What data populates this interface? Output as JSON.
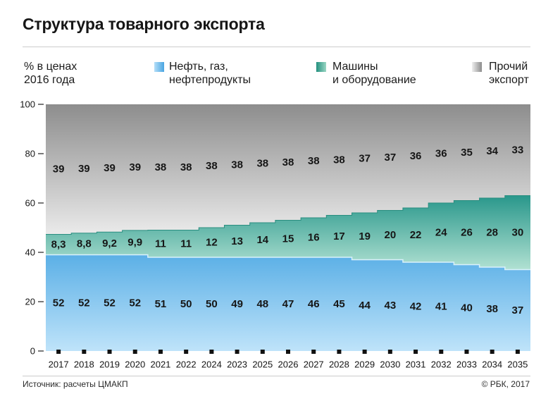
{
  "chart_data": {
    "type": "bar",
    "stacked": true,
    "title": "Структура товарного экспорта",
    "ylabel": "% в ценах\n2016 года",
    "categories": [
      "2017",
      "2018",
      "2019",
      "2020",
      "2021",
      "2022",
      "2024",
      "2023",
      "2025",
      "2026",
      "2027",
      "2028",
      "2029",
      "2030",
      "2031",
      "2032",
      "2033",
      "2034",
      "2035"
    ],
    "series": [
      {
        "name": "Нефть, газ,\nнефтепродукты",
        "color": "#4fa9e3",
        "values": [
          52,
          52,
          52,
          52,
          51,
          50,
          50,
          49,
          48,
          47,
          46,
          45,
          44,
          43,
          42,
          41,
          40,
          38,
          37
        ]
      },
      {
        "name": "Машины\nи оборудование",
        "color": "#2a988a",
        "values": [
          8.3,
          8.8,
          9.2,
          9.9,
          11,
          11,
          12,
          13,
          14,
          15,
          16,
          17,
          19,
          20,
          22,
          24,
          26,
          28,
          30
        ]
      },
      {
        "name": "Прочий\nэкспорт",
        "color": "#9a9a9a",
        "values": [
          39,
          39,
          39,
          39,
          38,
          38,
          38,
          38,
          38,
          38,
          38,
          38,
          37,
          37,
          36,
          36,
          35,
          34,
          33
        ]
      }
    ],
    "ylim": [
      0,
      100
    ],
    "yticks": [
      0,
      20,
      40,
      60,
      80,
      100
    ],
    "grid": false,
    "legend_position": "top"
  },
  "footer": {
    "source": "Источник: расчеты ЦМАКП",
    "copyright": "© РБК, 2017"
  }
}
